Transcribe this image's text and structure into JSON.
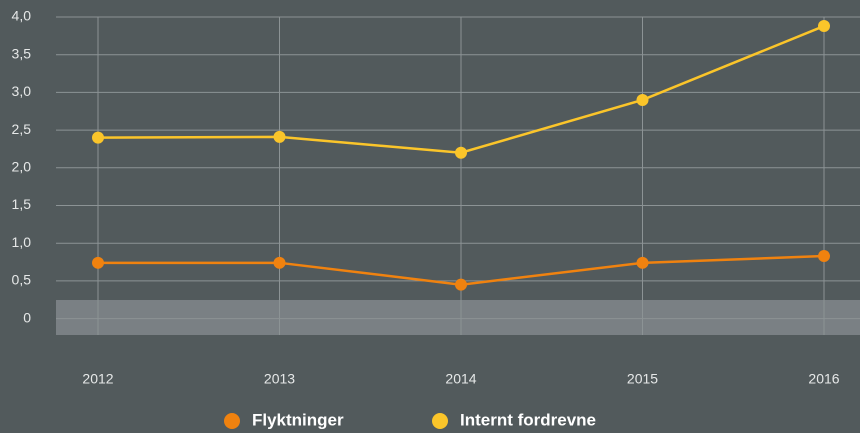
{
  "chart_data": {
    "type": "line",
    "categories": [
      "2012",
      "2013",
      "2014",
      "2015",
      "2016"
    ],
    "series": [
      {
        "name": "Flyktninger",
        "color": "#f0820f",
        "values": [
          0.74,
          0.74,
          0.45,
          0.74,
          0.83
        ]
      },
      {
        "name": "Internt fordrevne",
        "color": "#fbc52a",
        "values": [
          2.4,
          2.41,
          2.2,
          2.9,
          3.88
        ]
      }
    ],
    "ylim": [
      -0.2,
      4.0
    ],
    "yticks": [
      0,
      {
        "value": 0.5,
        "label": "0,5"
      },
      {
        "value": 1,
        "label": "1,0"
      },
      {
        "value": 1.5,
        "label": "1,5"
      },
      {
        "value": 2,
        "label": "2,0"
      },
      {
        "value": 2.5,
        "label": "2,5"
      },
      {
        "value": 3,
        "label": "3,0"
      },
      {
        "value": 3.5,
        "label": "3,5"
      },
      {
        "value": 4,
        "label": "4,0"
      }
    ],
    "grid": true
  }
}
